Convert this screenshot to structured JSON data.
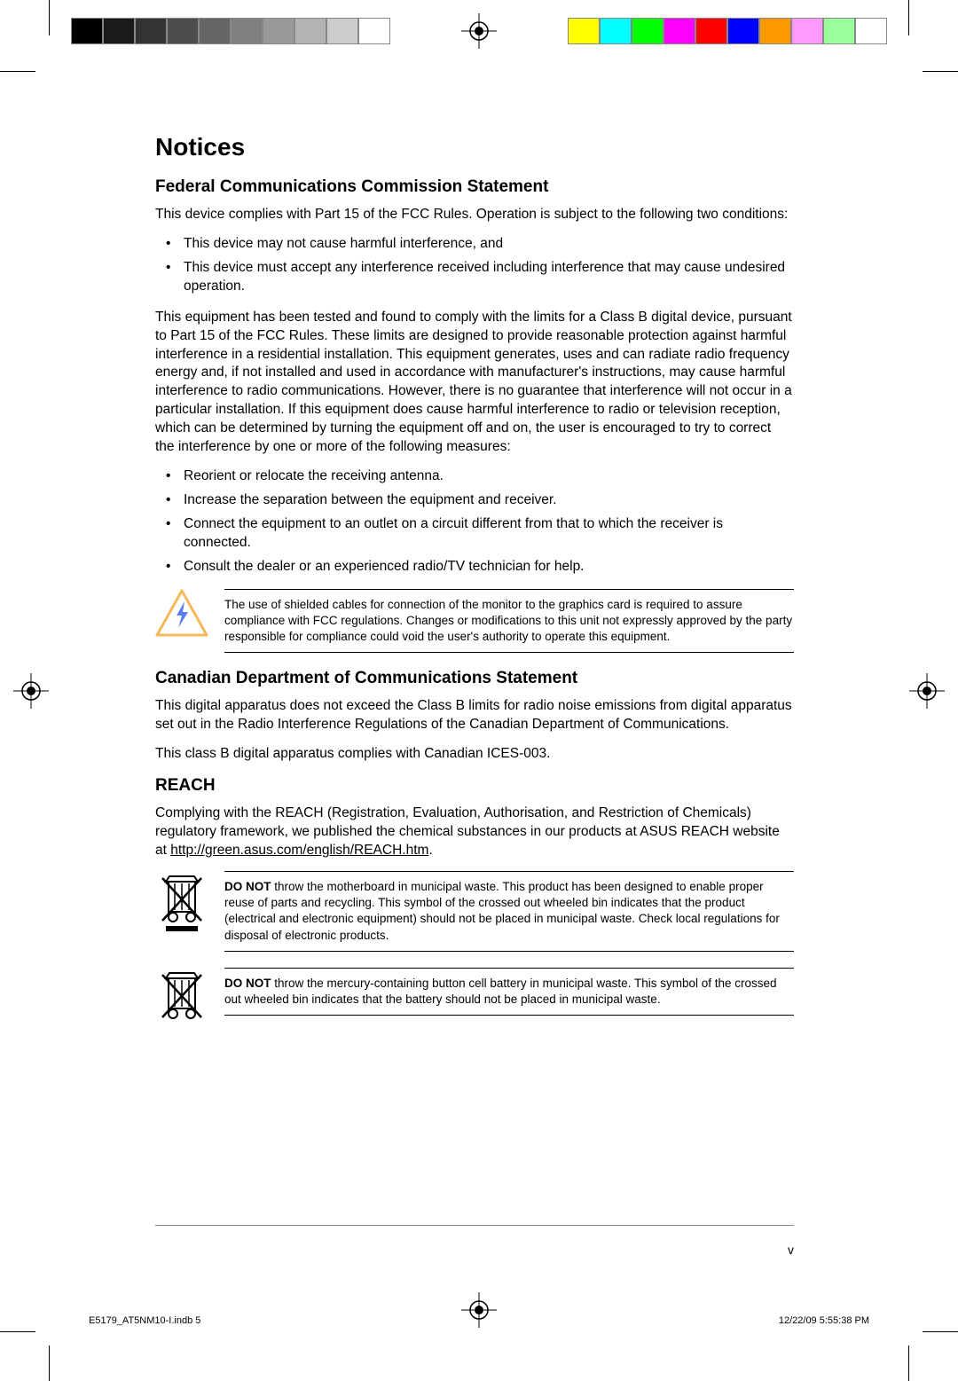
{
  "colorbars": {
    "gray": [
      "#000000",
      "#1a1a1a",
      "#333333",
      "#4d4d4d",
      "#666666",
      "#808080",
      "#999999",
      "#b3b3b3",
      "#cccccc",
      "#ffffff"
    ],
    "color": [
      "#ffff00",
      "#00ffff",
      "#00ff00",
      "#ff00ff",
      "#ff0000",
      "#0000ff",
      "#ff9900",
      "#ff99ff",
      "#99ff99",
      "#ffffff"
    ]
  },
  "title": "Notices",
  "sections": {
    "fcc": {
      "heading": "Federal Communications Commission Statement",
      "p1": "This device complies with Part 15 of the FCC Rules. Operation is subject to the following two conditions:",
      "bullets1": [
        "This device may not cause harmful interference, and",
        "This device must accept any interference received including interference that may cause undesired operation."
      ],
      "p2": "This equipment has been tested and found to comply with the limits for a Class B digital device, pursuant to Part 15 of the FCC Rules. These limits are designed to provide reasonable protection against harmful interference in a residential installation. This equipment generates, uses and can radiate radio frequency energy and, if not installed and used in accordance with manufacturer's instructions, may cause harmful interference to radio communications. However, there is no guarantee that interference will not occur in a particular installation. If this equipment does cause harmful interference to radio or television reception, which can be determined by turning the equipment off and on, the user is encouraged to try to correct the interference by one or more of the following measures:",
      "bullets2": [
        "Reorient or relocate the receiving antenna.",
        "Increase the separation between the equipment and receiver.",
        "Connect the equipment to an outlet on a circuit different from that to which the receiver is connected.",
        "Consult the dealer or an experienced radio/TV technician for help."
      ],
      "note": "The use of shielded cables for connection of the monitor to the graphics card is required to assure compliance with FCC regulations. Changes or modifications to this unit not expressly approved by the party responsible for compliance could void the user's authority to operate this equipment."
    },
    "canada": {
      "heading": "Canadian Department of Communications Statement",
      "p1": "This digital apparatus does not exceed the Class B limits for radio noise emissions from digital apparatus set out in the Radio Interference Regulations of the Canadian Department of Communications.",
      "p2": "This class B digital apparatus complies with Canadian ICES-003."
    },
    "reach": {
      "heading": "REACH",
      "p1_pre": "Complying with the REACH (Registration, Evaluation, Authorisation, and Restriction of Chemicals) regulatory framework, we published the chemical substances in our products at ASUS REACH website at ",
      "p1_link": "http://green.asus.com/english/REACH.htm",
      "p1_post": ".",
      "weee1_bold": "DO NOT",
      "weee1_text": " throw the motherboard in municipal waste. This product has been designed to enable proper reuse of parts and recycling. This symbol of the crossed out wheeled bin indicates that the product (electrical and electronic equipment) should not be placed in municipal waste. Check local regulations for disposal of electronic products.",
      "weee2_bold": "DO NOT",
      "weee2_text": " throw the mercury-containing button cell battery in municipal waste. This symbol of the crossed out wheeled bin indicates that the battery should not be placed in municipal waste."
    }
  },
  "page_number": "v",
  "footer": {
    "file": "E5179_AT5NM10-I.indb   5",
    "timestamp": "12/22/09   5:55:38 PM"
  }
}
